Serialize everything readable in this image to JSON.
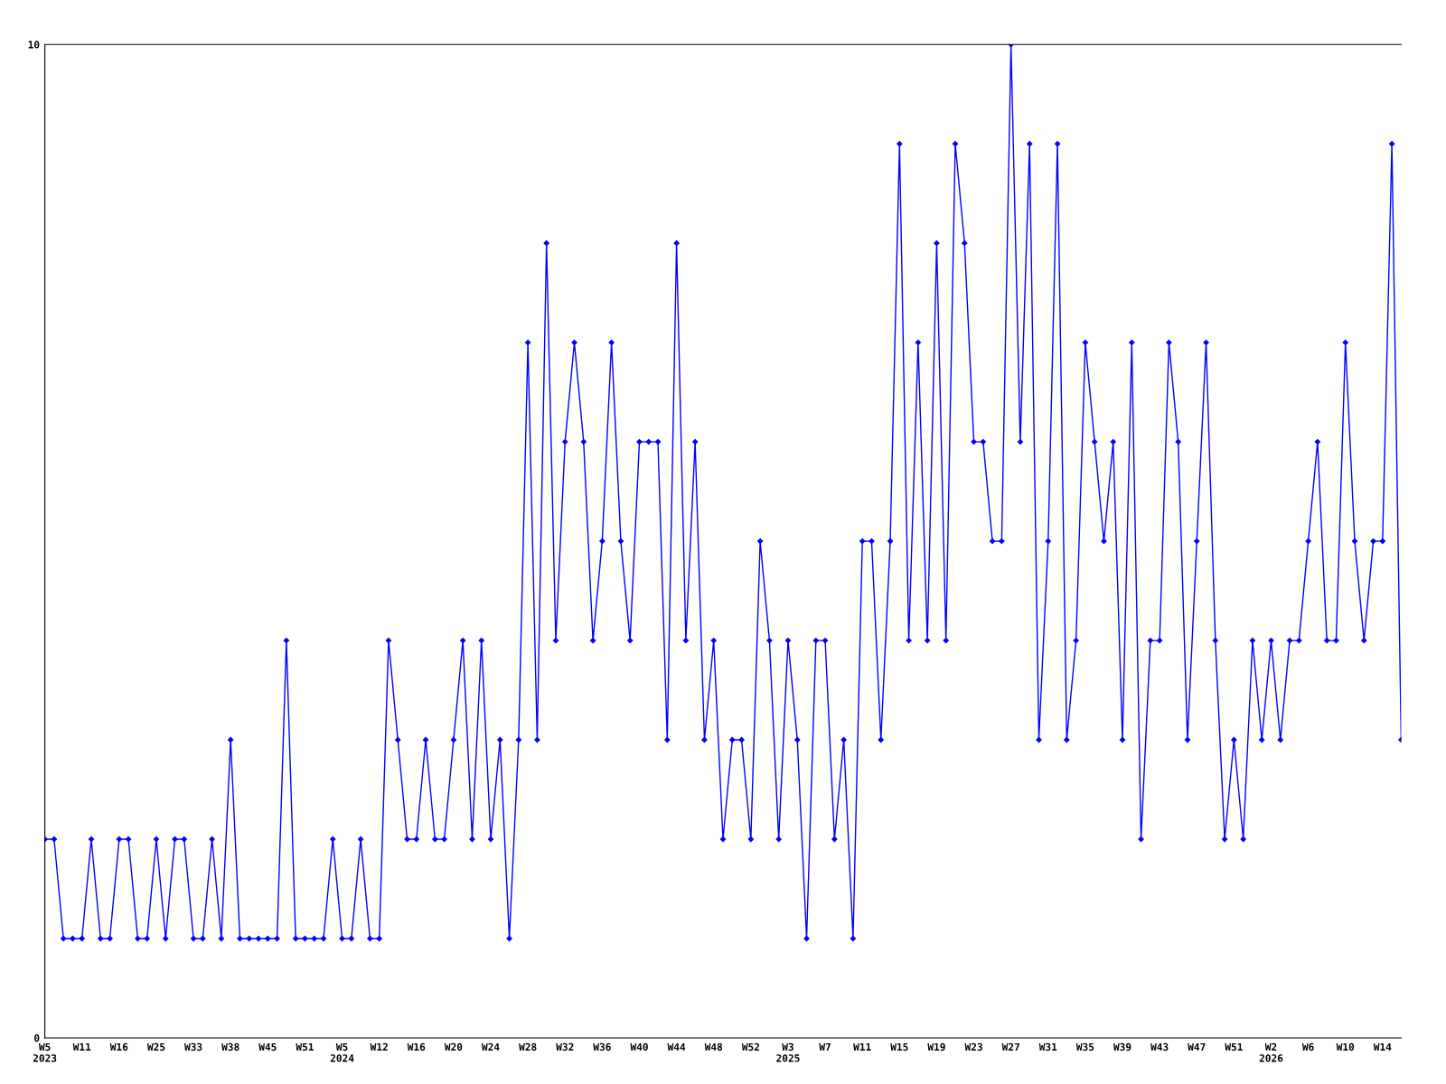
{
  "chart_data": {
    "type": "line",
    "categories": [
      "W5\n2023",
      null,
      null,
      null,
      "W11",
      null,
      null,
      null,
      "W16",
      null,
      null,
      null,
      "W25",
      null,
      null,
      null,
      "W33",
      null,
      null,
      null,
      "W38",
      null,
      null,
      null,
      "W45",
      null,
      null,
      null,
      "W51",
      null,
      null,
      null,
      "W5\n2024",
      null,
      null,
      null,
      "W12",
      null,
      null,
      null,
      "W16",
      null,
      null,
      null,
      "W20",
      null,
      null,
      null,
      "W24",
      null,
      null,
      null,
      "W28",
      null,
      null,
      null,
      "W32",
      null,
      null,
      null,
      "W36",
      null,
      null,
      null,
      "W40",
      null,
      null,
      null,
      "W44",
      null,
      null,
      null,
      "W48",
      null,
      null,
      null,
      "W52",
      null,
      null,
      null,
      "W3\n2025",
      null,
      null,
      null,
      "W7",
      null,
      null,
      null,
      "W11",
      null,
      null,
      null,
      "W15",
      null,
      null,
      null,
      "W19",
      null,
      null,
      null,
      "W23",
      null,
      null,
      null,
      "W27",
      null,
      null,
      null,
      "W31",
      null,
      null,
      null,
      "W35",
      null,
      null,
      null,
      "W39",
      null,
      null,
      null,
      "W43",
      null,
      null,
      null,
      "W47",
      null,
      null,
      null,
      "W51",
      null,
      null,
      null,
      "W2\n2026",
      null,
      null,
      null,
      "W6",
      null,
      null,
      null,
      "W10",
      null,
      null,
      null,
      "W14",
      null,
      null
    ],
    "series": [
      {
        "color": "#0000ff",
        "values": [
          2,
          2,
          1,
          1,
          1,
          2,
          1,
          1,
          2,
          2,
          1,
          1,
          2,
          1,
          2,
          2,
          1,
          1,
          2,
          1,
          3,
          1,
          1,
          1,
          1,
          1,
          4,
          1,
          1,
          1,
          1,
          2,
          1,
          1,
          2,
          1,
          1,
          4,
          3,
          2,
          2,
          3,
          2,
          2,
          3,
          4,
          2,
          4,
          2,
          3,
          1,
          3,
          7,
          3,
          8,
          4,
          6,
          7,
          6,
          4,
          5,
          7,
          5,
          4,
          6,
          6,
          6,
          3,
          8,
          4,
          6,
          3,
          4,
          2,
          3,
          3,
          2,
          5,
          4,
          2,
          4,
          3,
          1,
          4,
          4,
          2,
          3,
          1,
          5,
          5,
          3,
          5,
          9,
          4,
          7,
          4,
          8,
          4,
          9,
          8,
          6,
          6,
          5,
          5,
          10,
          6,
          9,
          3,
          5,
          9,
          3,
          4,
          7,
          6,
          5,
          6,
          3,
          7,
          2,
          4,
          4,
          7,
          6,
          3,
          5,
          7,
          4,
          2,
          3,
          2,
          4,
          3,
          4,
          3,
          4,
          4,
          5,
          6,
          4,
          4,
          7,
          5,
          4,
          5,
          5,
          9,
          3
        ]
      }
    ],
    "ylim": [
      0,
      10
    ],
    "yticks": [
      0,
      10
    ],
    "grid": false,
    "legend": false,
    "marker": "diamond",
    "line_style": "solid"
  }
}
